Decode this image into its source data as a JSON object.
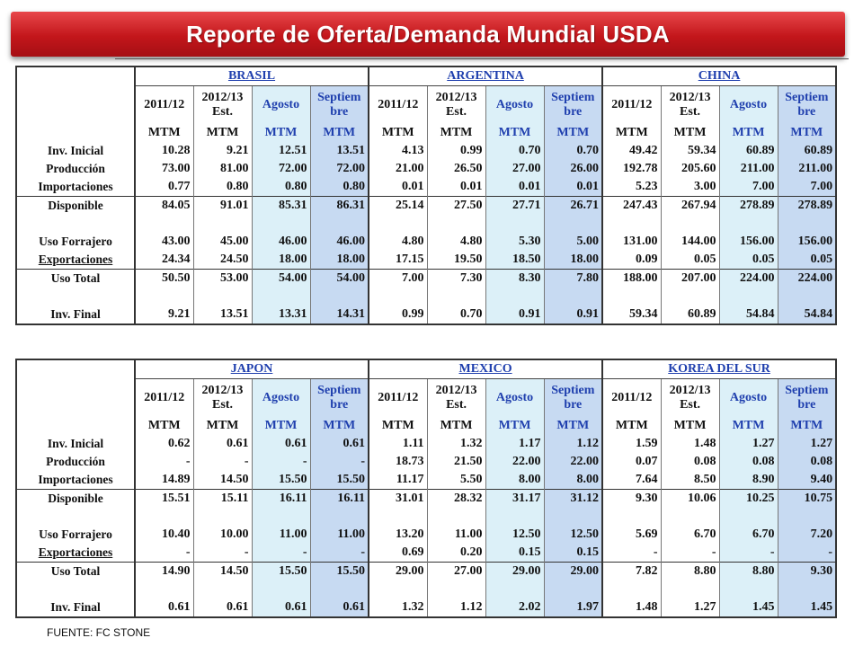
{
  "title": "Reporte de Oferta/Demanda  Mundial USDA",
  "column_headers": {
    "c1": {
      "l1": "2011/12",
      "l2": "MTM"
    },
    "c2": {
      "l1": "2012/13",
      "l1b": "Est.",
      "l2": "MTM"
    },
    "c3": {
      "l1": "Agosto",
      "l2": "MTM"
    },
    "c4": {
      "l1": "Septiem",
      "l1b": "bre",
      "l2": "MTM"
    }
  },
  "row_labels": [
    "Inv. Inicial",
    "Producción",
    "Importaciones",
    "Disponible",
    "Uso Forrajero",
    "Exportaciones",
    "Uso Total",
    "Inv. Final"
  ],
  "tables": [
    {
      "regions": [
        {
          "name": "BRASIL",
          "rows": [
            [
              "10.28",
              "9.21",
              "12.51",
              "13.51"
            ],
            [
              "73.00",
              "81.00",
              "72.00",
              "72.00"
            ],
            [
              "0.77",
              "0.80",
              "0.80",
              "0.80"
            ],
            [
              "84.05",
              "91.01",
              "85.31",
              "86.31"
            ],
            [
              "43.00",
              "45.00",
              "46.00",
              "46.00"
            ],
            [
              "24.34",
              "24.50",
              "18.00",
              "18.00"
            ],
            [
              "50.50",
              "53.00",
              "54.00",
              "54.00"
            ],
            [
              "9.21",
              "13.51",
              "13.31",
              "14.31"
            ]
          ]
        },
        {
          "name": "ARGENTINA",
          "rows": [
            [
              "4.13",
              "0.99",
              "0.70",
              "0.70"
            ],
            [
              "21.00",
              "26.50",
              "27.00",
              "26.00"
            ],
            [
              "0.01",
              "0.01",
              "0.01",
              "0.01"
            ],
            [
              "25.14",
              "27.50",
              "27.71",
              "26.71"
            ],
            [
              "4.80",
              "4.80",
              "5.30",
              "5.00"
            ],
            [
              "17.15",
              "19.50",
              "18.50",
              "18.00"
            ],
            [
              "7.00",
              "7.30",
              "8.30",
              "7.80"
            ],
            [
              "0.99",
              "0.70",
              "0.91",
              "0.91"
            ]
          ]
        },
        {
          "name": "CHINA",
          "rows": [
            [
              "49.42",
              "59.34",
              "60.89",
              "60.89"
            ],
            [
              "192.78",
              "205.60",
              "211.00",
              "211.00"
            ],
            [
              "5.23",
              "3.00",
              "7.00",
              "7.00"
            ],
            [
              "247.43",
              "267.94",
              "278.89",
              "278.89"
            ],
            [
              "131.00",
              "144.00",
              "156.00",
              "156.00"
            ],
            [
              "0.09",
              "0.05",
              "0.05",
              "0.05"
            ],
            [
              "188.00",
              "207.00",
              "224.00",
              "224.00"
            ],
            [
              "59.34",
              "60.89",
              "54.84",
              "54.84"
            ]
          ]
        }
      ]
    },
    {
      "regions": [
        {
          "name": "JAPON",
          "rows": [
            [
              "0.62",
              "0.61",
              "0.61",
              "0.61"
            ],
            [
              "-",
              "-",
              "-",
              "-"
            ],
            [
              "14.89",
              "14.50",
              "15.50",
              "15.50"
            ],
            [
              "15.51",
              "15.11",
              "16.11",
              "16.11"
            ],
            [
              "10.40",
              "10.00",
              "11.00",
              "11.00"
            ],
            [
              "-",
              "-",
              "-",
              "-"
            ],
            [
              "14.90",
              "14.50",
              "15.50",
              "15.50"
            ],
            [
              "0.61",
              "0.61",
              "0.61",
              "0.61"
            ]
          ]
        },
        {
          "name": "MEXICO",
          "rows": [
            [
              "1.11",
              "1.32",
              "1.17",
              "1.12"
            ],
            [
              "18.73",
              "21.50",
              "22.00",
              "22.00"
            ],
            [
              "11.17",
              "5.50",
              "8.00",
              "8.00"
            ],
            [
              "31.01",
              "28.32",
              "31.17",
              "31.12"
            ],
            [
              "13.20",
              "11.00",
              "12.50",
              "12.50"
            ],
            [
              "0.69",
              "0.20",
              "0.15",
              "0.15"
            ],
            [
              "29.00",
              "27.00",
              "29.00",
              "29.00"
            ],
            [
              "1.32",
              "1.12",
              "2.02",
              "1.97"
            ]
          ]
        },
        {
          "name": "KOREA DEL SUR",
          "rows": [
            [
              "1.59",
              "1.48",
              "1.27",
              "1.27"
            ],
            [
              "0.07",
              "0.08",
              "0.08",
              "0.08"
            ],
            [
              "7.64",
              "8.50",
              "8.90",
              "9.40"
            ],
            [
              "9.30",
              "10.06",
              "10.25",
              "10.75"
            ],
            [
              "5.69",
              "6.70",
              "6.70",
              "7.20"
            ],
            [
              "-",
              "-",
              "-",
              "-"
            ],
            [
              "7.82",
              "8.80",
              "8.80",
              "9.30"
            ],
            [
              "1.48",
              "1.27",
              "1.45",
              "1.45"
            ]
          ]
        }
      ]
    }
  ],
  "source": "FUENTE: FC STONE",
  "colors": {
    "banner": "#c3161b",
    "header_blue": "#1f3fae",
    "agosto_bg": "#dcf0f8",
    "septiembre_bg": "#c7daf2"
  }
}
